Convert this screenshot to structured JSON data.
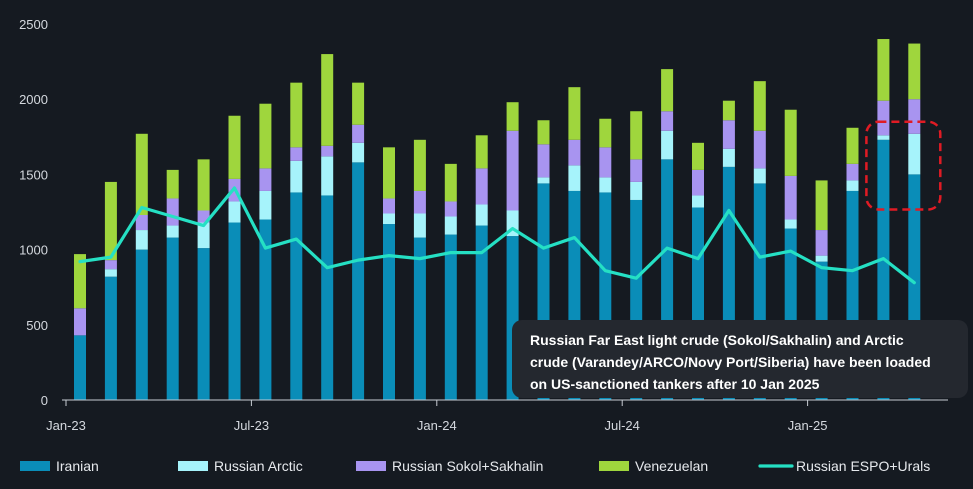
{
  "chart_data": {
    "type": "bar",
    "stacked": true,
    "categories": [
      "Jan-23",
      "Feb-23",
      "Mar-23",
      "Apr-23",
      "May-23",
      "Jun-23",
      "Jul-23",
      "Aug-23",
      "Sep-23",
      "Oct-23",
      "Nov-23",
      "Dec-23",
      "Jan-24",
      "Feb-24",
      "Mar-24",
      "Apr-24",
      "May-24",
      "Jun-24",
      "Jul-24",
      "Aug-24",
      "Sep-24",
      "Oct-24",
      "Nov-24",
      "Dec-24",
      "Jan-25",
      "Feb-25",
      "Mar-25",
      "Apr-25",
      "May-25"
    ],
    "x_tick_labels": [
      {
        "index": 0,
        "label": "Jan-23"
      },
      {
        "index": 6,
        "label": "Jul-23"
      },
      {
        "index": 12,
        "label": "Jan-24"
      },
      {
        "index": 18,
        "label": "Jul-24"
      },
      {
        "index": 24,
        "label": "Jan-25"
      }
    ],
    "y_ticks": [
      0,
      500,
      1000,
      1500,
      2000,
      2500
    ],
    "ylim": [
      0,
      2500
    ],
    "grid": false,
    "legend_position": "bottom",
    "series": [
      {
        "name": "Iranian",
        "color": "#0a8db8",
        "values": [
          430,
          820,
          1000,
          1080,
          1010,
          1180,
          1200,
          1380,
          1360,
          1580,
          1170,
          1080,
          1100,
          1160,
          1090,
          1440,
          1390,
          1380,
          1330,
          1600,
          1280,
          1550,
          1440,
          1140,
          920,
          1390,
          1730,
          1500,
          0
        ]
      },
      {
        "name": "Russian Arctic",
        "color": "#a6f3fb",
        "values": [
          0,
          50,
          130,
          80,
          170,
          140,
          190,
          210,
          260,
          130,
          70,
          160,
          120,
          140,
          170,
          40,
          170,
          100,
          120,
          190,
          80,
          120,
          100,
          60,
          40,
          70,
          30,
          270,
          0
        ]
      },
      {
        "name": "Russian Sokol+Sakhalin",
        "color": "#a894f0",
        "values": [
          180,
          60,
          100,
          180,
          80,
          150,
          150,
          90,
          70,
          120,
          100,
          150,
          100,
          240,
          530,
          220,
          170,
          200,
          150,
          130,
          170,
          190,
          250,
          290,
          170,
          110,
          230,
          230,
          0
        ]
      },
      {
        "name": "Venezuelan",
        "color": "#9fd63d",
        "values": [
          360,
          520,
          540,
          190,
          340,
          420,
          430,
          430,
          610,
          280,
          340,
          340,
          250,
          220,
          190,
          160,
          350,
          190,
          320,
          280,
          180,
          130,
          330,
          440,
          330,
          240,
          410,
          370,
          0
        ]
      }
    ],
    "line_series": {
      "name": "Russian ESPO+Urals",
      "color": "#25e0c4",
      "values": [
        920,
        950,
        1280,
        1220,
        1160,
        1410,
        1010,
        1070,
        880,
        930,
        960,
        940,
        980,
        980,
        1140,
        1010,
        1080,
        860,
        810,
        1010,
        940,
        1260,
        950,
        990,
        880,
        860,
        940,
        780
      ]
    },
    "annotation": {
      "lines": [
        "Russian Far East light crude (Sokol/Sakhalin) and Arctic",
        "crude (Varandey/ARCO/Novy Port/Siberia) have been loaded",
        "on US-sanctioned tankers after 10 Jan 2025"
      ],
      "highlight_bar_range": [
        26,
        27
      ],
      "highlight_value_range": [
        1400,
        1850
      ],
      "highlight_color": "#e01b24"
    }
  }
}
